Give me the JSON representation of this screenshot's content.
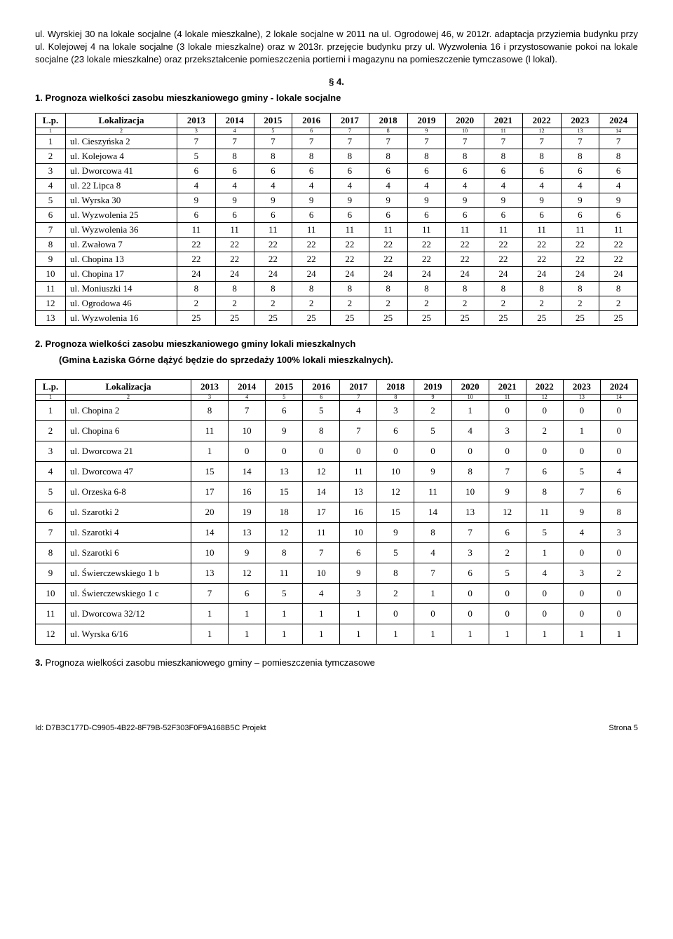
{
  "intro_para": "ul. Wyrskiej 30 na lokale socjalne (4 lokale mieszkalne), 2 lokale socjalne w 2011 na ul. Ogrodowej 46, w 2012r. adaptacja przyziemia budynku przy ul. Kolejowej 4 na lokale socjalne (3 lokale mieszkalne) oraz w 2013r. przejęcie budynku przy ul. Wyzwolenia 16 i przystosowanie pokoi na lokale socjalne (23 lokale mieszkalne) oraz przekształcenie pomieszczenia portierni i magazynu na pomieszczenie tymczasowe (l lokal).",
  "section_num": "§ 4.",
  "heading1": "1. Prognoza wielkości zasobu mieszkaniowego gminy - lokale socjalne",
  "heading2": "2. Prognoza wielkości zasobu mieszkaniowego gminy lokali mieszkalnych",
  "heading2_sub": "(Gmina Łaziska Górne dążyć będzie do sprzedaży 100% lokali mieszkalnych).",
  "heading3": "3. Prognoza wielkości zasobu mieszkaniowego gminy – pomieszczenia tymczasowe",
  "col_lp": "L.p.",
  "col_lok": "Lokalizacja",
  "years": [
    "2013",
    "2014",
    "2015",
    "2016",
    "2017",
    "2018",
    "2019",
    "2020",
    "2021",
    "2022",
    "2023",
    "2024"
  ],
  "tiny_nums": [
    "1",
    "2",
    "3",
    "4",
    "5",
    "6",
    "7",
    "8",
    "9",
    "10",
    "11",
    "12",
    "13",
    "14"
  ],
  "table1": [
    {
      "lp": "1",
      "lok": "ul. Cieszyńska 2",
      "v": [
        "7",
        "7",
        "7",
        "7",
        "7",
        "7",
        "7",
        "7",
        "7",
        "7",
        "7",
        "7"
      ]
    },
    {
      "lp": "2",
      "lok": "ul. Kolejowa 4",
      "v": [
        "5",
        "8",
        "8",
        "8",
        "8",
        "8",
        "8",
        "8",
        "8",
        "8",
        "8",
        "8"
      ]
    },
    {
      "lp": "3",
      "lok": "ul. Dworcowa 41",
      "v": [
        "6",
        "6",
        "6",
        "6",
        "6",
        "6",
        "6",
        "6",
        "6",
        "6",
        "6",
        "6"
      ]
    },
    {
      "lp": "4",
      "lok": "ul. 22 Lipca 8",
      "v": [
        "4",
        "4",
        "4",
        "4",
        "4",
        "4",
        "4",
        "4",
        "4",
        "4",
        "4",
        "4"
      ]
    },
    {
      "lp": "5",
      "lok": "ul. Wyrska 30",
      "v": [
        "9",
        "9",
        "9",
        "9",
        "9",
        "9",
        "9",
        "9",
        "9",
        "9",
        "9",
        "9"
      ]
    },
    {
      "lp": "6",
      "lok": "ul. Wyzwolenia 25",
      "v": [
        "6",
        "6",
        "6",
        "6",
        "6",
        "6",
        "6",
        "6",
        "6",
        "6",
        "6",
        "6"
      ]
    },
    {
      "lp": "7",
      "lok": "ul. Wyzwolenia 36",
      "v": [
        "11",
        "11",
        "11",
        "11",
        "11",
        "11",
        "11",
        "11",
        "11",
        "11",
        "11",
        "11"
      ]
    },
    {
      "lp": "8",
      "lok": "ul. Zwałowa 7",
      "v": [
        "22",
        "22",
        "22",
        "22",
        "22",
        "22",
        "22",
        "22",
        "22",
        "22",
        "22",
        "22"
      ]
    },
    {
      "lp": "9",
      "lok": "ul. Chopina 13",
      "v": [
        "22",
        "22",
        "22",
        "22",
        "22",
        "22",
        "22",
        "22",
        "22",
        "22",
        "22",
        "22"
      ]
    },
    {
      "lp": "10",
      "lok": "ul. Chopina 17",
      "v": [
        "24",
        "24",
        "24",
        "24",
        "24",
        "24",
        "24",
        "24",
        "24",
        "24",
        "24",
        "24"
      ]
    },
    {
      "lp": "11",
      "lok": "ul. Moniuszki 14",
      "v": [
        "8",
        "8",
        "8",
        "8",
        "8",
        "8",
        "8",
        "8",
        "8",
        "8",
        "8",
        "8"
      ]
    },
    {
      "lp": "12",
      "lok": "ul. Ogrodowa 46",
      "v": [
        "2",
        "2",
        "2",
        "2",
        "2",
        "2",
        "2",
        "2",
        "2",
        "2",
        "2",
        "2"
      ]
    },
    {
      "lp": "13",
      "lok": "ul. Wyzwolenia 16",
      "v": [
        "25",
        "25",
        "25",
        "25",
        "25",
        "25",
        "25",
        "25",
        "25",
        "25",
        "25",
        "25"
      ]
    }
  ],
  "table2": [
    {
      "lp": "1",
      "lok": "ul. Chopina 2",
      "v": [
        "8",
        "7",
        "6",
        "5",
        "4",
        "3",
        "2",
        "1",
        "0",
        "0",
        "0",
        "0"
      ]
    },
    {
      "lp": "2",
      "lok": "ul. Chopina 6",
      "v": [
        "11",
        "10",
        "9",
        "8",
        "7",
        "6",
        "5",
        "4",
        "3",
        "2",
        "1",
        "0"
      ]
    },
    {
      "lp": "3",
      "lok": "ul. Dworcowa  21",
      "v": [
        "1",
        "0",
        "0",
        "0",
        "0",
        "0",
        "0",
        "0",
        "0",
        "0",
        "0",
        "0"
      ]
    },
    {
      "lp": "4",
      "lok": "ul. Dworcowa 47",
      "v": [
        "15",
        "14",
        "13",
        "12",
        "11",
        "10",
        "9",
        "8",
        "7",
        "6",
        "5",
        "4"
      ]
    },
    {
      "lp": "5",
      "lok": "ul. Orzeska 6-8",
      "v": [
        "17",
        "16",
        "15",
        "14",
        "13",
        "12",
        "11",
        "10",
        "9",
        "8",
        "7",
        "6"
      ]
    },
    {
      "lp": "6",
      "lok": "ul. Szarotki 2",
      "v": [
        "20",
        "19",
        "18",
        "17",
        "16",
        "15",
        "14",
        "13",
        "12",
        "11",
        "9",
        "8"
      ]
    },
    {
      "lp": "7",
      "lok": "ul. Szarotki 4",
      "v": [
        "14",
        "13",
        "12",
        "11",
        "10",
        "9",
        "8",
        "7",
        "6",
        "5",
        "4",
        "3"
      ]
    },
    {
      "lp": "8",
      "lok": "ul. Szarotki 6",
      "v": [
        "10",
        "9",
        "8",
        "7",
        "6",
        "5",
        "4",
        "3",
        "2",
        "1",
        "0",
        "0"
      ]
    },
    {
      "lp": "9",
      "lok": "ul. Świerczewskiego 1 b",
      "v": [
        "13",
        "12",
        "11",
        "10",
        "9",
        "8",
        "7",
        "6",
        "5",
        "4",
        "3",
        "2"
      ]
    },
    {
      "lp": "10",
      "lok": "ul. Świerczewskiego 1 c",
      "v": [
        "7",
        "6",
        "5",
        "4",
        "3",
        "2",
        "1",
        "0",
        "0",
        "0",
        "0",
        "0"
      ]
    },
    {
      "lp": "11",
      "lok": "ul. Dworcowa 32/12",
      "v": [
        "1",
        "1",
        "1",
        "1",
        "1",
        "0",
        "0",
        "0",
        "0",
        "0",
        "0",
        "0"
      ]
    },
    {
      "lp": "12",
      "lok": "ul. Wyrska 6/16",
      "v": [
        "1",
        "1",
        "1",
        "1",
        "1",
        "1",
        "1",
        "1",
        "1",
        "1",
        "1",
        "1"
      ]
    }
  ],
  "footer_id": "Id: D7B3C177D-C9905-4B22-8F79B-52F303F0F9A168B5C Projekt",
  "footer_page": "Strona 5"
}
